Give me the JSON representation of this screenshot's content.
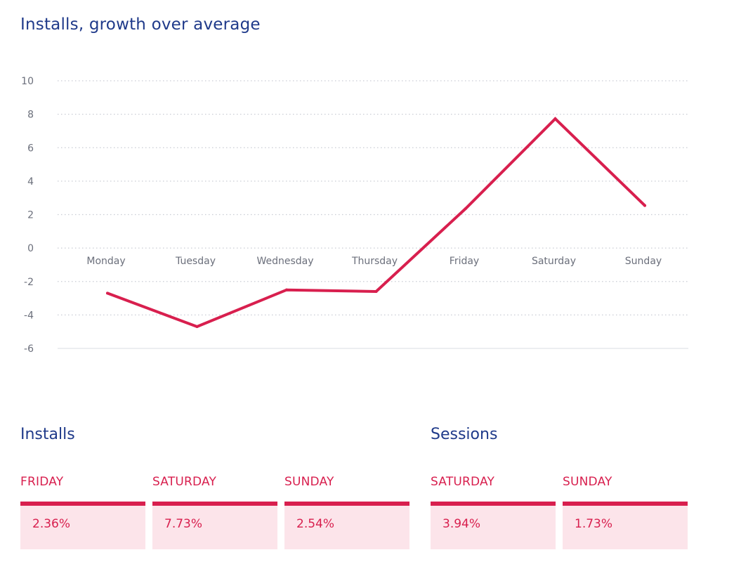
{
  "chart_data": {
    "type": "line",
    "title": "Installs, growth over average",
    "categories": [
      "Monday",
      "Tuesday",
      "Wednesday",
      "Thursday",
      "Friday",
      "Saturday",
      "Sunday"
    ],
    "values": [
      -2.7,
      -4.7,
      -2.5,
      -2.6,
      2.36,
      7.73,
      2.54
    ],
    "y_ticks": [
      "10",
      "8",
      "6",
      "4",
      "2",
      "0",
      "-2",
      "-4",
      "-6"
    ],
    "ylim": [
      -6,
      10
    ],
    "grid": true,
    "line_color": "#d81f4e"
  },
  "installs": {
    "title": "Installs",
    "cards": [
      {
        "day": "FRIDAY",
        "value": "2.36%"
      },
      {
        "day": "SATURDAY",
        "value": "7.73%"
      },
      {
        "day": "SUNDAY",
        "value": "2.54%"
      }
    ]
  },
  "sessions": {
    "title": "Sessions",
    "cards": [
      {
        "day": "SATURDAY",
        "value": "3.94%"
      },
      {
        "day": "SUNDAY",
        "value": "1.73%"
      }
    ]
  },
  "colors": {
    "accent": "#d81f4e",
    "heading": "#1f3a8a",
    "card_bg": "#fce4ea"
  }
}
